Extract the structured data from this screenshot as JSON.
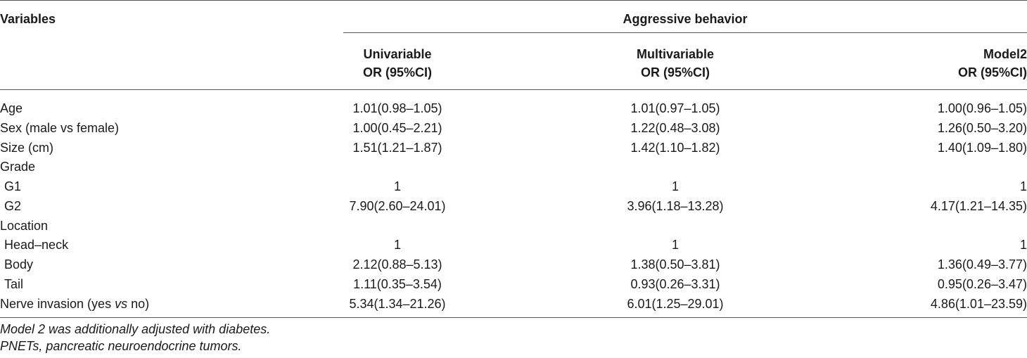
{
  "header": {
    "variables": "Variables",
    "group": "Aggressive behavior",
    "col1_line1": "Univariable",
    "col1_line2": "OR (95%CI)",
    "col2_line1": "Multivariable",
    "col2_line2": "OR (95%CI)",
    "col3_line1": "Model2",
    "col3_line2": "OR (95%CI)"
  },
  "rows": [
    {
      "label": "Age",
      "univariable": "1.01(0.98–1.05)",
      "multivariable": "1.01(0.97–1.05)",
      "model2": "1.00(0.96–1.05)"
    },
    {
      "label": "Sex (male vs female)",
      "univariable": "1.00(0.45–2.21)",
      "multivariable": "1.22(0.48–3.08)",
      "model2": "1.26(0.50–3.20)"
    },
    {
      "label": "Size (cm)",
      "univariable": "1.51(1.21–1.87)",
      "multivariable": "1.42(1.10–1.82)",
      "model2": "1.40(1.09–1.80)"
    },
    {
      "label": "Grade",
      "univariable": "",
      "multivariable": "",
      "model2": ""
    },
    {
      "label": "G1",
      "univariable": "1",
      "multivariable": "1",
      "model2": "1"
    },
    {
      "label": "G2",
      "univariable": "7.90(2.60–24.01)",
      "multivariable": "3.96(1.18–13.28)",
      "model2": "4.17(1.21–14.35)"
    },
    {
      "label": "Location",
      "univariable": "",
      "multivariable": "",
      "model2": ""
    },
    {
      "label": "Head–neck",
      "univariable": "1",
      "multivariable": "1",
      "model2": "1"
    },
    {
      "label": "Body",
      "univariable": "2.12(0.88–5.13)",
      "multivariable": "1.38(0.50–3.81)",
      "model2": "1.36(0.49–3.77)"
    },
    {
      "label": "Tail",
      "univariable": "1.11(0.35–3.54)",
      "multivariable": "0.93(0.26–3.31)",
      "model2": "0.95(0.26–3.47)"
    },
    {
      "label_pre": "Nerve invasion (yes ",
      "label_em": "vs",
      "label_post": " no)",
      "univariable": "5.34(1.34–21.26)",
      "multivariable": "6.01(1.25–29.01)",
      "model2": "4.86(1.01–23.59)"
    }
  ],
  "footnotes": {
    "note1": "Model 2 was additionally adjusted with diabetes.",
    "note2": "PNETs, pancreatic neuroendocrine tumors."
  }
}
